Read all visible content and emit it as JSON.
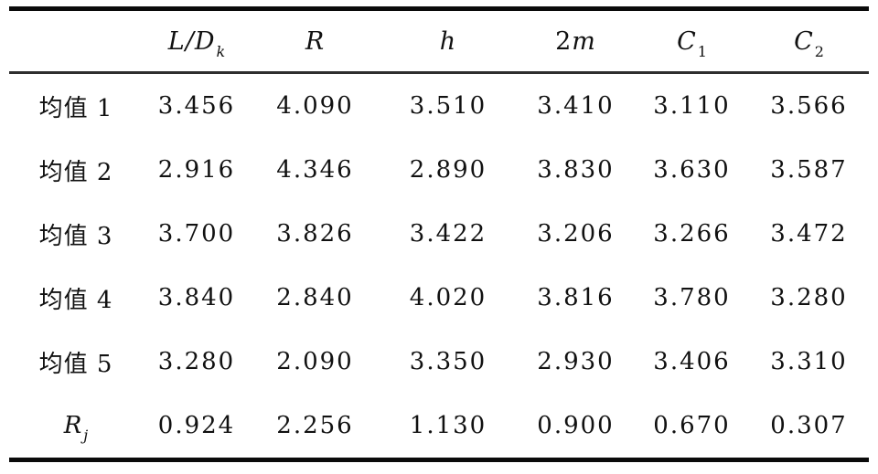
{
  "table": {
    "columns": [
      {
        "pre": "",
        "it": "",
        "sub": ""
      },
      {
        "pre": "",
        "it": "L/D",
        "sub": "k"
      },
      {
        "pre": "",
        "it": "R",
        "sub": ""
      },
      {
        "pre": "",
        "it": "h",
        "sub": ""
      },
      {
        "pre": "2",
        "it": "m",
        "sub": ""
      },
      {
        "pre": "",
        "it": "C",
        "sub": "1"
      },
      {
        "pre": "",
        "it": "C",
        "sub": "2"
      }
    ],
    "rows": [
      {
        "pre": "均值 1",
        "it": "",
        "sub": "",
        "values": [
          "3.456",
          "4.090",
          "3.510",
          "3.410",
          "3.110",
          "3.566"
        ]
      },
      {
        "pre": "均值 2",
        "it": "",
        "sub": "",
        "values": [
          "2.916",
          "4.346",
          "2.890",
          "3.830",
          "3.630",
          "3.587"
        ]
      },
      {
        "pre": "均值 3",
        "it": "",
        "sub": "",
        "values": [
          "3.700",
          "3.826",
          "3.422",
          "3.206",
          "3.266",
          "3.472"
        ]
      },
      {
        "pre": "均值 4",
        "it": "",
        "sub": "",
        "values": [
          "3.840",
          "2.840",
          "4.020",
          "3.816",
          "3.780",
          "3.280"
        ]
      },
      {
        "pre": "均值 5",
        "it": "",
        "sub": "",
        "values": [
          "3.280",
          "2.090",
          "3.350",
          "2.930",
          "3.406",
          "3.310"
        ]
      },
      {
        "pre": "",
        "it": "R",
        "sub": "j",
        "values": [
          "0.924",
          "2.256",
          "1.130",
          "0.900",
          "0.670",
          "0.307"
        ]
      }
    ],
    "rules": {
      "top_rule_color": "#0a0a0a",
      "header_rule_color": "#2e2e2e",
      "bottom_rule_color": "#0a0a0a"
    }
  },
  "chart_data": {
    "type": "table",
    "title": "",
    "column_headers": [
      "",
      "L/D_k",
      "R",
      "h",
      "2m",
      "C_1",
      "C_2"
    ],
    "row_headers": [
      "均值 1",
      "均值 2",
      "均值 3",
      "均值 4",
      "均值 5",
      "R_j"
    ],
    "values": [
      [
        3.456,
        4.09,
        3.51,
        3.41,
        3.11,
        3.566
      ],
      [
        2.916,
        4.346,
        2.89,
        3.83,
        3.63,
        3.587
      ],
      [
        3.7,
        3.826,
        3.422,
        3.206,
        3.266,
        3.472
      ],
      [
        3.84,
        2.84,
        4.02,
        3.816,
        3.78,
        3.28
      ],
      [
        3.28,
        2.09,
        3.35,
        2.93,
        3.406,
        3.31
      ],
      [
        0.924,
        2.256,
        1.13,
        0.9,
        0.67,
        0.307
      ]
    ]
  }
}
